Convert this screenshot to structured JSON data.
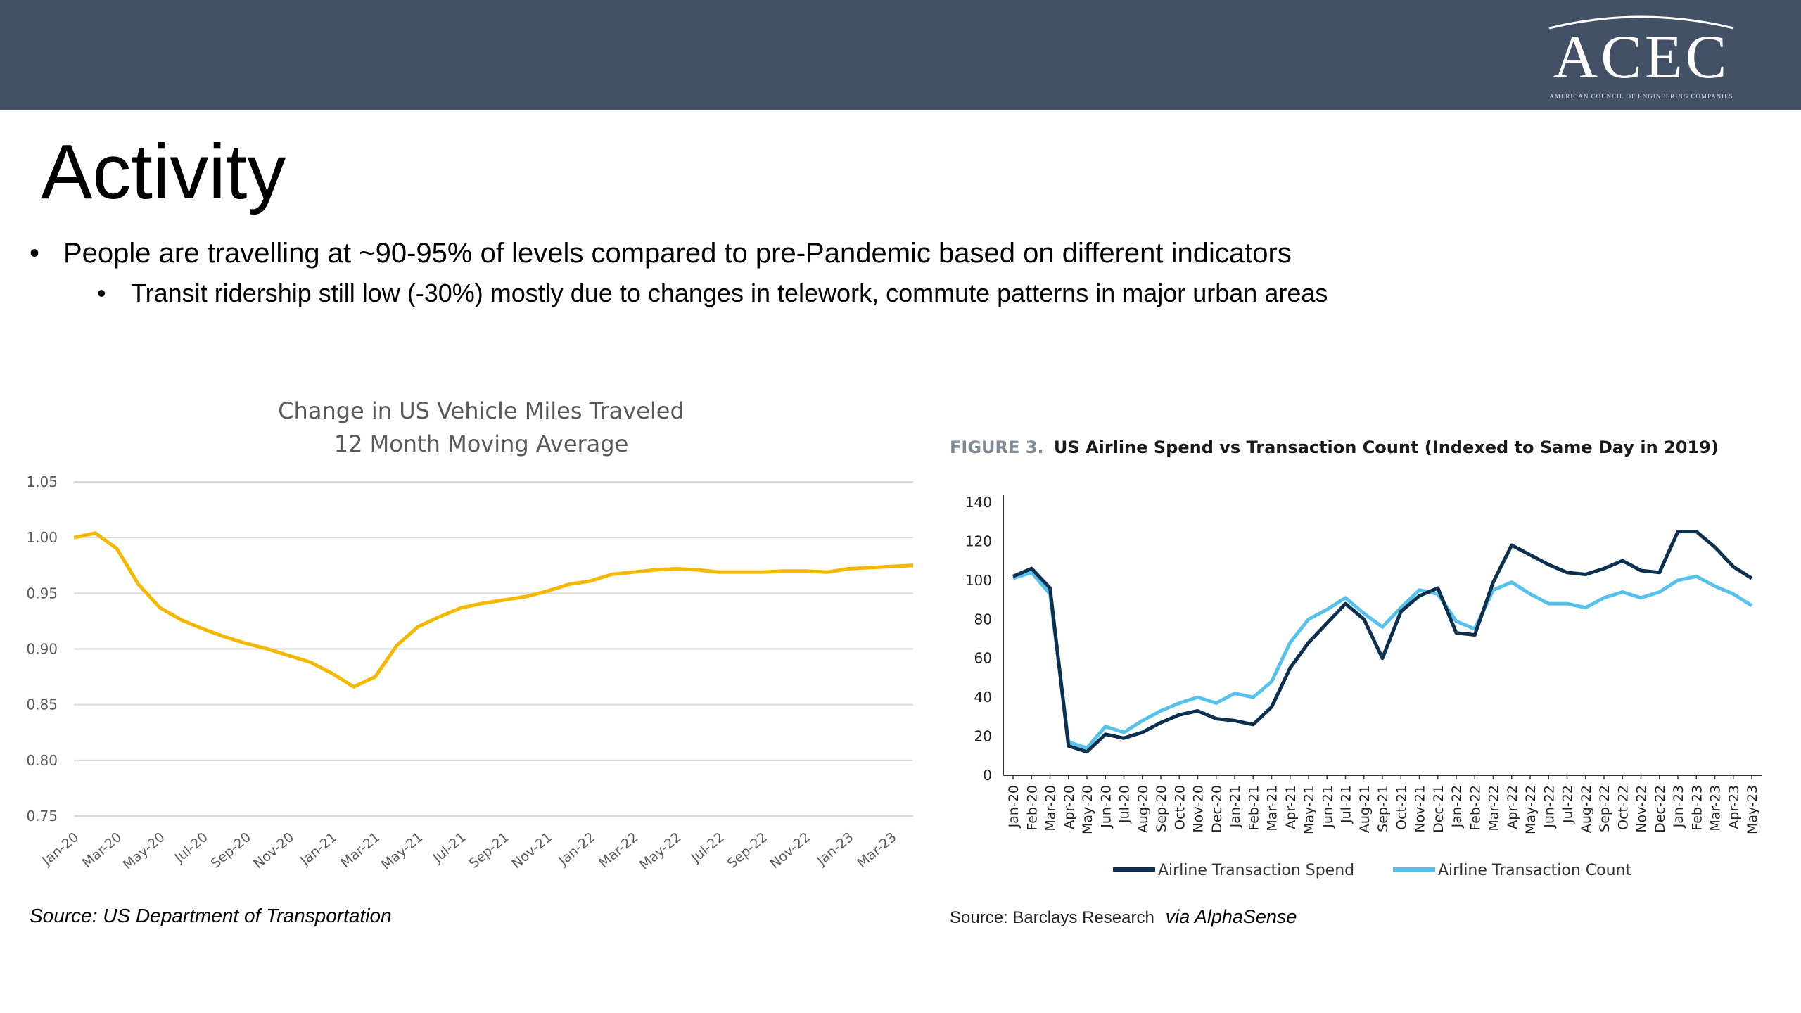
{
  "header": {
    "logo_text": "ACEC",
    "logo_subtext": "AMERICAN COUNCIL OF ENGINEERING COMPANIES"
  },
  "slide": {
    "title": "Activity",
    "bullets": [
      "People are travelling at ~90-95% of levels compared to pre-Pandemic based on different indicators",
      "Transit ridership still low (-30%) mostly due to changes in telework, commute patterns in major urban areas"
    ],
    "bullet_glyph": "•"
  },
  "colors": {
    "header_bg": "#435167",
    "vmt_line": "#F5B800",
    "spend_line": "#0D3050",
    "count_line": "#56C1EB",
    "figure_label": "#7F8A96"
  },
  "sources": {
    "left": "Source: US Department of Transportation",
    "right": "Source: Barclays Research",
    "right_via": "via AlphaSense"
  },
  "chart_data": [
    {
      "type": "line",
      "title": "Change in US Vehicle Miles Traveled",
      "subtitle": "12 Month Moving Average",
      "xlabel": "",
      "ylabel": "",
      "ylim": [
        0.75,
        1.05
      ],
      "yticks": [
        "1.05",
        "1.00",
        "0.95",
        "0.90",
        "0.85",
        "0.80",
        "0.75"
      ],
      "grid": true,
      "tick_labels": [
        "Jan-20",
        "Mar-20",
        "May-20",
        "Jul-20",
        "Sep-20",
        "Nov-20",
        "Jan-21",
        "Mar-21",
        "May-21",
        "Jul-21",
        "Sep-21",
        "Nov-21",
        "Jan-22",
        "Mar-22",
        "May-22",
        "Jul-22",
        "Sep-22",
        "Nov-22",
        "Jan-23",
        "Mar-23"
      ],
      "x": [
        "Jan-20",
        "Feb-20",
        "Mar-20",
        "Apr-20",
        "May-20",
        "Jun-20",
        "Jul-20",
        "Aug-20",
        "Sep-20",
        "Oct-20",
        "Nov-20",
        "Dec-20",
        "Jan-21",
        "Feb-21",
        "Mar-21",
        "Apr-21",
        "May-21",
        "Jun-21",
        "Jul-21",
        "Aug-21",
        "Sep-21",
        "Oct-21",
        "Nov-21",
        "Dec-21",
        "Jan-22",
        "Feb-22",
        "Mar-22",
        "Apr-22",
        "May-22",
        "Jun-22",
        "Jul-22",
        "Aug-22",
        "Sep-22",
        "Oct-22",
        "Nov-22",
        "Dec-22",
        "Jan-23",
        "Feb-23",
        "Mar-23",
        "Apr-23"
      ],
      "series": [
        {
          "values": [
            1.0,
            1.004,
            0.99,
            0.958,
            0.937,
            0.926,
            0.918,
            0.911,
            0.905,
            0.9,
            0.894,
            0.888,
            0.878,
            0.866,
            0.875,
            0.903,
            0.92,
            0.929,
            0.937,
            0.941,
            0.944,
            0.947,
            0.952,
            0.958,
            0.961,
            0.967,
            0.969,
            0.971,
            0.972,
            0.971,
            0.969,
            0.969,
            0.969,
            0.97,
            0.97,
            0.969,
            0.972,
            0.973,
            0.974,
            0.975
          ]
        }
      ]
    },
    {
      "type": "line",
      "figure_label": "FIGURE 3.",
      "title": "US Airline Spend vs Transaction Count (Indexed to Same Day in 2019)",
      "xlabel": "",
      "ylabel": "",
      "ylim": [
        0,
        140
      ],
      "yticks": [
        "140",
        "120",
        "100",
        "80",
        "60",
        "40",
        "20",
        "0"
      ],
      "grid": false,
      "legend": "bottom",
      "x": [
        "Jan-20",
        "Feb-20",
        "Mar-20",
        "Apr-20",
        "May-20",
        "Jun-20",
        "Jul-20",
        "Aug-20",
        "Sep-20",
        "Oct-20",
        "Nov-20",
        "Dec-20",
        "Jan-21",
        "Feb-21",
        "Mar-21",
        "Apr-21",
        "May-21",
        "Jun-21",
        "Jul-21",
        "Aug-21",
        "Sep-21",
        "Oct-21",
        "Nov-21",
        "Dec-21",
        "Jan-22",
        "Feb-22",
        "Mar-22",
        "Apr-22",
        "May-22",
        "Jun-22",
        "Jul-22",
        "Aug-22",
        "Sep-22",
        "Oct-22",
        "Nov-22",
        "Dec-22",
        "Jan-23",
        "Feb-23",
        "Mar-23",
        "Apr-23",
        "May-23"
      ],
      "series": [
        {
          "name": "Airline Transaction Spend",
          "values": [
            102,
            106,
            96,
            15,
            12,
            21,
            19,
            22,
            27,
            31,
            33,
            29,
            28,
            26,
            35,
            55,
            68,
            78,
            88,
            80,
            60,
            84,
            92,
            96,
            73,
            72,
            99,
            118,
            113,
            108,
            104,
            103,
            106,
            110,
            105,
            104,
            125,
            125,
            117,
            107,
            101
          ]
        },
        {
          "name": "Airline Transaction Count",
          "values": [
            101,
            104,
            93,
            17,
            14,
            25,
            22,
            28,
            33,
            37,
            40,
            37,
            42,
            40,
            48,
            68,
            80,
            85,
            91,
            83,
            76,
            86,
            95,
            93,
            79,
            75,
            95,
            99,
            93,
            88,
            88,
            86,
            91,
            94,
            91,
            94,
            100,
            102,
            97,
            93,
            87
          ]
        }
      ]
    }
  ]
}
